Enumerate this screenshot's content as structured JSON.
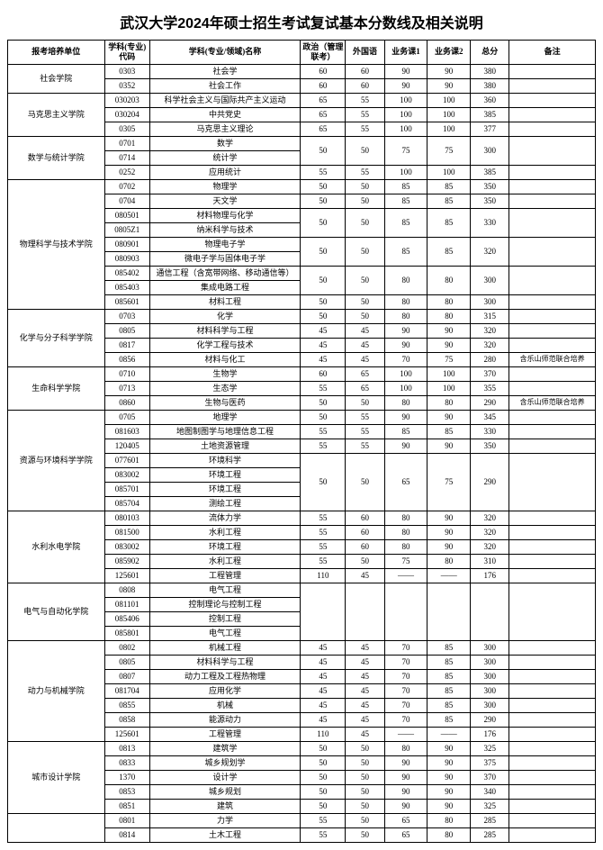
{
  "title": "武汉大学2024年硕士招生考试复试基本分数线及相关说明",
  "headers": {
    "dept": "报考培养单位",
    "code": "学科(专业)\n代码",
    "name": "学科(专业/领域)名称",
    "pol": "政治（管理联考）",
    "forn": "外国语",
    "b1": "业务课1",
    "b2": "业务课2",
    "total": "总分",
    "note": "备注"
  },
  "groups": [
    {
      "dept": "社会学院",
      "rows": [
        {
          "code": "0303",
          "name": "社会学",
          "cells": [
            "60",
            "60",
            "90",
            "90",
            "380",
            ""
          ]
        },
        {
          "code": "0352",
          "name": "社会工作",
          "cells": [
            "60",
            "60",
            "90",
            "90",
            "380",
            ""
          ]
        }
      ]
    },
    {
      "dept": "马克思主义学院",
      "rows": [
        {
          "code": "030203",
          "name": "科学社会主义与国际共产主义运动",
          "cells": [
            "65",
            "55",
            "100",
            "100",
            "360",
            ""
          ]
        },
        {
          "code": "030204",
          "name": "中共党史",
          "cells": [
            "65",
            "55",
            "100",
            "100",
            "385",
            ""
          ]
        },
        {
          "code": "0305",
          "name": "马克思主义理论",
          "cells": [
            "65",
            "55",
            "100",
            "100",
            "377",
            ""
          ]
        }
      ]
    },
    {
      "dept": "数学与统计学院",
      "rows": [
        {
          "code": "0701",
          "name": "数学",
          "merge": 2,
          "cells": [
            "50",
            "50",
            "75",
            "75",
            "300",
            ""
          ]
        },
        {
          "code": "0714",
          "name": "统计学"
        },
        {
          "code": "0252",
          "name": "应用统计",
          "cells": [
            "55",
            "55",
            "100",
            "100",
            "385",
            ""
          ]
        }
      ]
    },
    {
      "dept": "物理科学与技术学院",
      "rows": [
        {
          "code": "0702",
          "name": "物理学",
          "cells": [
            "50",
            "50",
            "85",
            "85",
            "350",
            ""
          ]
        },
        {
          "code": "0704",
          "name": "天文学",
          "cells": [
            "50",
            "50",
            "85",
            "85",
            "350",
            ""
          ]
        },
        {
          "code": "080501",
          "name": "材料物理与化学",
          "merge": 2,
          "cells": [
            "50",
            "50",
            "85",
            "85",
            "330",
            ""
          ]
        },
        {
          "code": "0805Z1",
          "name": "纳米科学与技术"
        },
        {
          "code": "080901",
          "name": "物理电子学",
          "merge": 2,
          "cells": [
            "50",
            "50",
            "85",
            "85",
            "320",
            ""
          ]
        },
        {
          "code": "080903",
          "name": "微电子学与固体电子学"
        },
        {
          "code": "085402",
          "name": "通信工程（含宽带网络、移动通信等）",
          "merge": 2,
          "cells": [
            "50",
            "50",
            "80",
            "80",
            "300",
            ""
          ]
        },
        {
          "code": "085403",
          "name": "集成电路工程"
        },
        {
          "code": "085601",
          "name": "材料工程",
          "cells": [
            "50",
            "50",
            "80",
            "80",
            "300",
            ""
          ]
        }
      ]
    },
    {
      "dept": "化学与分子科学学院",
      "rows": [
        {
          "code": "0703",
          "name": "化学",
          "cells": [
            "50",
            "50",
            "80",
            "80",
            "315",
            ""
          ]
        },
        {
          "code": "0805",
          "name": "材料科学与工程",
          "cells": [
            "45",
            "45",
            "90",
            "90",
            "320",
            ""
          ]
        },
        {
          "code": "0817",
          "name": "化学工程与技术",
          "cells": [
            "45",
            "45",
            "90",
            "90",
            "320",
            ""
          ]
        },
        {
          "code": "0856",
          "name": "材料与化工",
          "cells": [
            "45",
            "45",
            "70",
            "75",
            "280",
            "含乐山师范联合培养"
          ]
        }
      ]
    },
    {
      "dept": "生命科学学院",
      "rows": [
        {
          "code": "0710",
          "name": "生物学",
          "cells": [
            "60",
            "65",
            "100",
            "100",
            "370",
            ""
          ]
        },
        {
          "code": "0713",
          "name": "生态学",
          "cells": [
            "55",
            "65",
            "100",
            "100",
            "355",
            ""
          ]
        },
        {
          "code": "0860",
          "name": "生物与医药",
          "cells": [
            "50",
            "50",
            "80",
            "80",
            "290",
            "含乐山师范联合培养"
          ]
        }
      ]
    },
    {
      "dept": "资源与环境科学学院",
      "rows": [
        {
          "code": "0705",
          "name": "地理学",
          "cells": [
            "50",
            "55",
            "90",
            "90",
            "345",
            ""
          ]
        },
        {
          "code": "081603",
          "name": "地图制图学与地理信息工程",
          "cells": [
            "55",
            "55",
            "85",
            "85",
            "330",
            ""
          ]
        },
        {
          "code": "120405",
          "name": "土地资源管理",
          "cells": [
            "55",
            "55",
            "90",
            "90",
            "350",
            ""
          ]
        },
        {
          "code": "077601",
          "name": "环境科学",
          "merge": 4,
          "cells": [
            "50",
            "50",
            "65",
            "75",
            "290",
            ""
          ]
        },
        {
          "code": "083002",
          "name": "环境工程"
        },
        {
          "code": "085701",
          "name": "环境工程"
        },
        {
          "code": "085704",
          "name": "测绘工程"
        }
      ]
    },
    {
      "dept": "水利水电学院",
      "rows": [
        {
          "code": "080103",
          "name": "流体力学",
          "cells": [
            "55",
            "60",
            "80",
            "90",
            "320",
            ""
          ]
        },
        {
          "code": "081500",
          "name": "水利工程",
          "cells": [
            "55",
            "60",
            "80",
            "90",
            "320",
            ""
          ]
        },
        {
          "code": "083002",
          "name": "环境工程",
          "cells": [
            "55",
            "60",
            "80",
            "90",
            "320",
            ""
          ]
        },
        {
          "code": "085902",
          "name": "水利工程",
          "cells": [
            "55",
            "50",
            "75",
            "80",
            "310",
            ""
          ]
        },
        {
          "code": "125601",
          "name": "工程管理",
          "cells": [
            "110",
            "45",
            "——",
            "——",
            "176",
            ""
          ]
        }
      ]
    },
    {
      "dept": "电气与自动化学院",
      "rows": [
        {
          "code": "0808",
          "name": "电气工程",
          "merge": 4,
          "cells": [
            "",
            "",
            "",
            "",
            "",
            ""
          ]
        },
        {
          "code": "081101",
          "name": "控制理论与控制工程"
        },
        {
          "code": "085406",
          "name": "控制工程"
        },
        {
          "code": "085801",
          "name": "电气工程"
        }
      ]
    },
    {
      "dept": "动力与机械学院",
      "rows": [
        {
          "code": "0802",
          "name": "机械工程",
          "cells": [
            "45",
            "45",
            "70",
            "85",
            "300",
            ""
          ]
        },
        {
          "code": "0805",
          "name": "材料科学与工程",
          "cells": [
            "45",
            "45",
            "70",
            "85",
            "300",
            ""
          ]
        },
        {
          "code": "0807",
          "name": "动力工程及工程热物理",
          "cells": [
            "45",
            "45",
            "70",
            "85",
            "300",
            ""
          ]
        },
        {
          "code": "081704",
          "name": "应用化学",
          "cells": [
            "45",
            "45",
            "70",
            "85",
            "300",
            ""
          ]
        },
        {
          "code": "0855",
          "name": "机械",
          "cells": [
            "45",
            "45",
            "70",
            "85",
            "300",
            ""
          ]
        },
        {
          "code": "0858",
          "name": "能源动力",
          "cells": [
            "45",
            "45",
            "70",
            "85",
            "290",
            ""
          ]
        },
        {
          "code": "125601",
          "name": "工程管理",
          "cells": [
            "110",
            "45",
            "——",
            "——",
            "176",
            ""
          ]
        }
      ]
    },
    {
      "dept": "城市设计学院",
      "rows": [
        {
          "code": "0813",
          "name": "建筑学",
          "cells": [
            "50",
            "50",
            "80",
            "90",
            "325",
            ""
          ]
        },
        {
          "code": "0833",
          "name": "城乡规划学",
          "cells": [
            "50",
            "50",
            "90",
            "90",
            "375",
            ""
          ]
        },
        {
          "code": "1370",
          "name": "设计学",
          "cells": [
            "50",
            "50",
            "90",
            "90",
            "370",
            ""
          ]
        },
        {
          "code": "0853",
          "name": "城乡规划",
          "cells": [
            "50",
            "50",
            "90",
            "90",
            "340",
            ""
          ]
        },
        {
          "code": "0851",
          "name": "建筑",
          "cells": [
            "50",
            "50",
            "90",
            "90",
            "325",
            ""
          ]
        }
      ]
    },
    {
      "dept": "",
      "rows": [
        {
          "code": "0801",
          "name": "力学",
          "cells": [
            "55",
            "50",
            "65",
            "80",
            "285",
            ""
          ]
        },
        {
          "code": "0814",
          "name": "土木工程",
          "cells": [
            "55",
            "50",
            "65",
            "80",
            "285",
            ""
          ]
        }
      ]
    }
  ]
}
